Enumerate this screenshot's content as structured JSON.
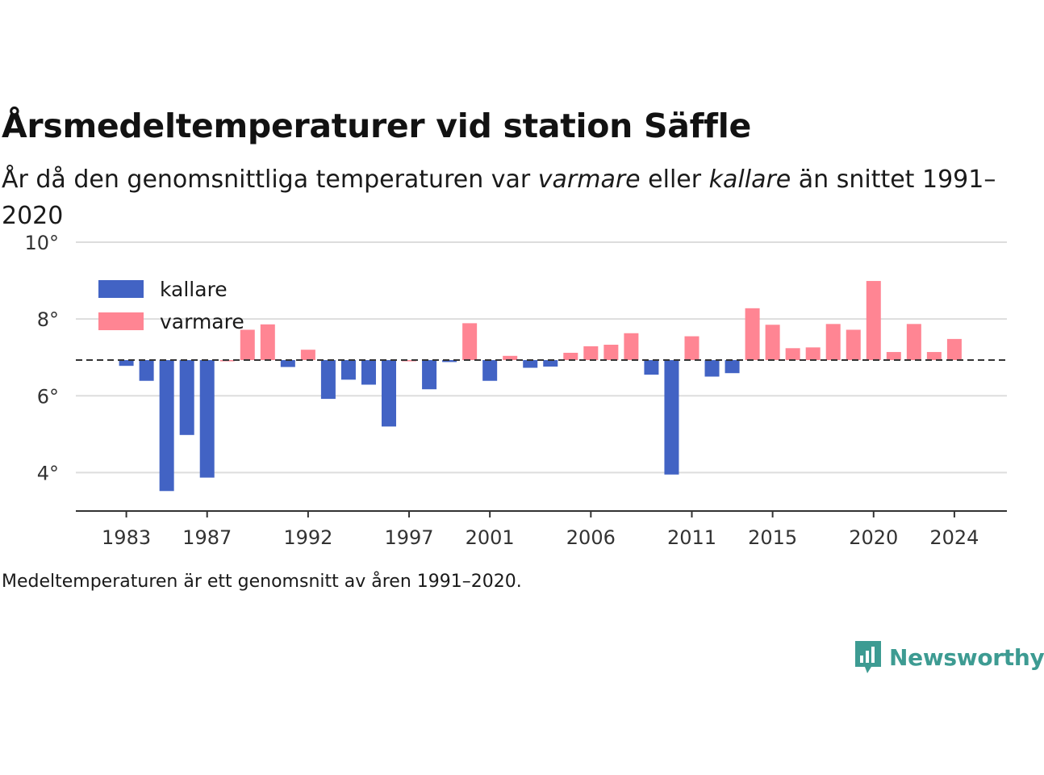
{
  "header": {
    "title": "Årsmedeltemperaturer vid station Säffle",
    "subtitle_part1": "År då den genomsnittliga temperaturen var ",
    "subtitle_em1": "varmare",
    "subtitle_part2": " eller ",
    "subtitle_em2": "kallare",
    "subtitle_part3": " än snittet 1991–2020"
  },
  "footnote": "Medeltemperaturen är ett genomsnitt av åren 1991–2020.",
  "brand": {
    "name": "Newsworthy"
  },
  "colors": {
    "colder": "#4263c4",
    "warmer": "#ff8593",
    "baseline": "#333333",
    "grid": "#dddddd",
    "brand": "#3d9b92"
  },
  "chart_data": {
    "type": "bar",
    "baseline": 6.93,
    "baseline_style": "dashed",
    "ylim": [
      3.0,
      10.0
    ],
    "yticks": [
      {
        "value": 4,
        "label": "4°"
      },
      {
        "value": 6,
        "label": "6°"
      },
      {
        "value": 8,
        "label": "8°"
      },
      {
        "value": 10,
        "label": "10°"
      }
    ],
    "xlim": [
      1980.5,
      2026.6
    ],
    "xticks": [
      {
        "value": 1983,
        "label": "1983"
      },
      {
        "value": 1987,
        "label": "1987"
      },
      {
        "value": 1992,
        "label": "1992"
      },
      {
        "value": 1997,
        "label": "1997"
      },
      {
        "value": 2001,
        "label": "2001"
      },
      {
        "value": 2006,
        "label": "2006"
      },
      {
        "value": 2011,
        "label": "2011"
      },
      {
        "value": 2015,
        "label": "2015"
      },
      {
        "value": 2020,
        "label": "2020"
      },
      {
        "value": 2024,
        "label": "2024"
      }
    ],
    "legend": [
      {
        "key": "kallare",
        "label": "kallare"
      },
      {
        "key": "varmare",
        "label": "varmare"
      }
    ],
    "legend_position": "top-left",
    "grid": true,
    "years": [
      1983,
      1984,
      1985,
      1986,
      1987,
      1988,
      1989,
      1990,
      1991,
      1992,
      1993,
      1994,
      1995,
      1996,
      1997,
      1998,
      1999,
      2000,
      2001,
      2002,
      2003,
      2004,
      2005,
      2006,
      2007,
      2008,
      2009,
      2010,
      2011,
      2012,
      2013,
      2014,
      2015,
      2016,
      2017,
      2018,
      2019,
      2020,
      2021,
      2022,
      2023,
      2024
    ],
    "values": [
      6.78,
      6.39,
      3.52,
      4.98,
      3.87,
      6.93,
      7.72,
      7.86,
      6.75,
      7.2,
      5.92,
      6.42,
      6.29,
      5.2,
      6.93,
      6.17,
      6.88,
      7.89,
      6.39,
      7.04,
      6.73,
      6.76,
      7.12,
      7.29,
      7.33,
      7.63,
      6.55,
      3.95,
      7.55,
      6.5,
      6.59,
      8.28,
      7.85,
      7.24,
      7.26,
      7.87,
      7.72,
      8.99,
      7.14,
      7.87,
      7.14,
      7.48
    ]
  }
}
